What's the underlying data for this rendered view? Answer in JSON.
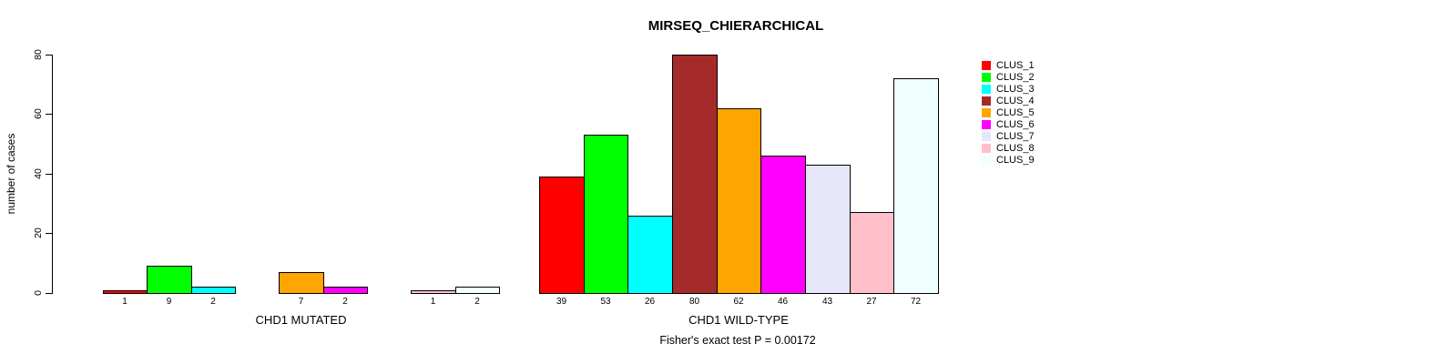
{
  "chart_data": {
    "type": "bar",
    "title": "MIRSEQ_CHIERARCHICAL",
    "ylabel": "number of cases",
    "ylim": [
      0,
      80
    ],
    "yticks": [
      0,
      20,
      40,
      60,
      80
    ],
    "grid": false,
    "legend_position": "right",
    "series_names": [
      "CLUS_1",
      "CLUS_2",
      "CLUS_3",
      "CLUS_4",
      "CLUS_5",
      "CLUS_6",
      "CLUS_7",
      "CLUS_8",
      "CLUS_9"
    ],
    "colors": [
      "#FF0000",
      "#00FF00",
      "#00FFFF",
      "#A52A2A",
      "#FFA500",
      "#FF00FF",
      "#E6E6FA",
      "#FFC0CB",
      "#F0FFFF"
    ],
    "groups": [
      {
        "label": "CHD1 MUTATED",
        "values": [
          1,
          9,
          2,
          0,
          7,
          2,
          0,
          1,
          2
        ]
      },
      {
        "label": "CHD1 WILD-TYPE",
        "values": [
          39,
          53,
          26,
          80,
          62,
          46,
          43,
          27,
          72
        ]
      }
    ],
    "bar_value_labels_shown": true,
    "zero_bars_hidden": true,
    "annotation": "Fisher's exact test P = 0.00172"
  }
}
